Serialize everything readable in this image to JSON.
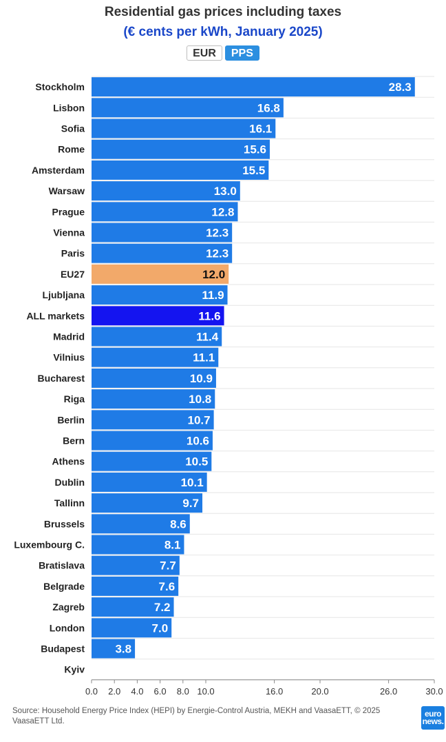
{
  "header": {
    "title": "Residential gas prices including taxes",
    "subtitle": "(€ cents per kWh, January 2025)"
  },
  "toggle": {
    "eur_label": "EUR",
    "pps_label": "PPS",
    "selected": "PPS"
  },
  "footer": {
    "source": "Source: Household Energy Price Index (HEPI) by Energie-Control Austria, MEKH and VaasaETT, © 2025 VaasaETT Ltd.",
    "logo_line1": "euro",
    "logo_line2": "news."
  },
  "colors": {
    "bar_default": "#1f7be6",
    "bar_eu27": "#f2a96a",
    "bar_all_markets": "#1414f0",
    "title": "#333333",
    "subtitle": "#1a47c9"
  },
  "chart_data": {
    "type": "bar",
    "orientation": "horizontal",
    "title": "Residential gas prices including taxes",
    "subtitle": "(€ cents per kWh, January 2025)",
    "categories": [
      "Stockholm",
      "Lisbon",
      "Sofia",
      "Rome",
      "Amsterdam",
      "Warsaw",
      "Prague",
      "Vienna",
      "Paris",
      "EU27",
      "Ljubljana",
      "ALL markets",
      "Madrid",
      "Vilnius",
      "Bucharest",
      "Riga",
      "Berlin",
      "Bern",
      "Athens",
      "Dublin",
      "Tallinn",
      "Brussels",
      "Luxembourg C.",
      "Bratislava",
      "Belgrade",
      "Zagreb",
      "London",
      "Budapest",
      "Kyiv"
    ],
    "values": [
      28.3,
      16.8,
      16.1,
      15.6,
      15.5,
      13.0,
      12.8,
      12.3,
      12.3,
      12.0,
      11.9,
      11.6,
      11.4,
      11.1,
      10.9,
      10.8,
      10.7,
      10.6,
      10.5,
      10.1,
      9.7,
      8.6,
      8.1,
      7.7,
      7.6,
      7.2,
      7.0,
      3.8,
      null
    ],
    "value_labels": [
      "28.3",
      "16.8",
      "16.1",
      "15.6",
      "15.5",
      "13.0",
      "12.8",
      "12.3",
      "12.3",
      "12.0",
      "11.9",
      "11.6",
      "11.4",
      "11.1",
      "10.9",
      "10.8",
      "10.7",
      "10.6",
      "10.5",
      "10.1",
      "9.7",
      "8.6",
      "8.1",
      "7.7",
      "7.6",
      "7.2",
      "7.0",
      "3.8",
      ""
    ],
    "highlight": {
      "EU27": "bar_eu27",
      "ALL markets": "bar_all_markets"
    },
    "xlim": [
      0,
      30
    ],
    "xticks": [
      0,
      2,
      4,
      6,
      8,
      10,
      16,
      20,
      26,
      30
    ],
    "xtick_labels": [
      "0.0",
      "2.0",
      "4.0",
      "6.0",
      "8.0",
      "10.0",
      "16.0",
      "20.0",
      "26.0",
      "30.0"
    ],
    "xlabel": "",
    "ylabel": "",
    "grid": true,
    "legend": "none"
  }
}
